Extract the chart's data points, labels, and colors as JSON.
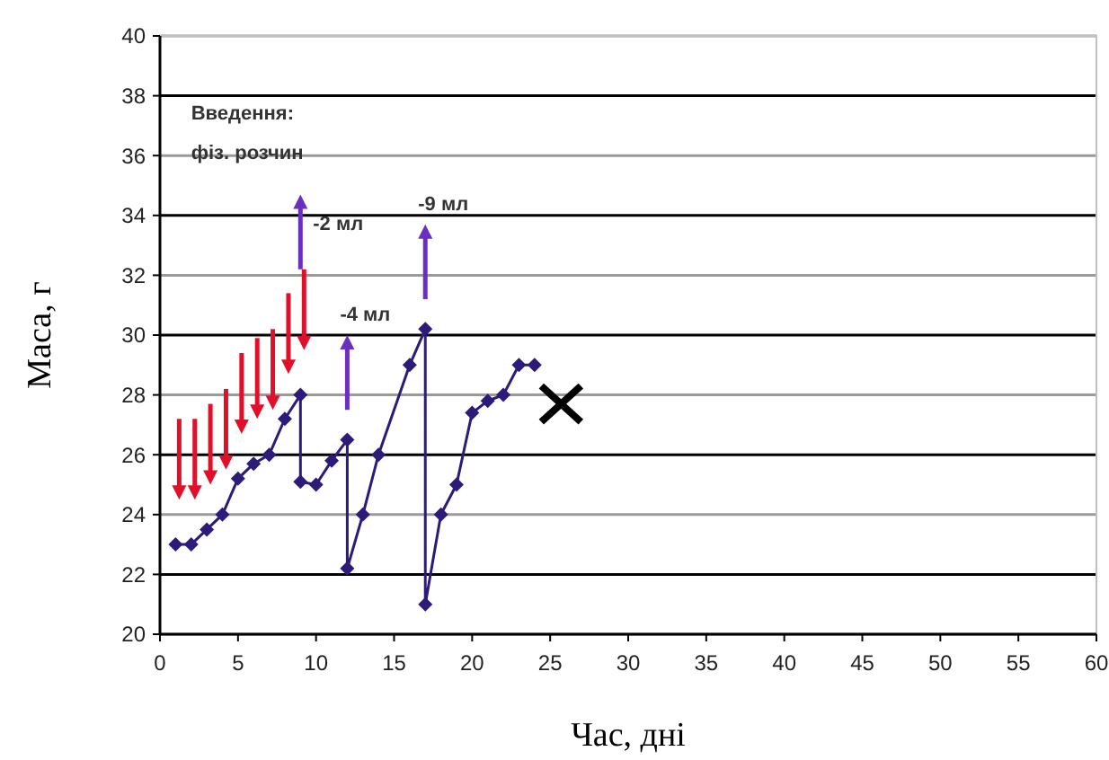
{
  "chart_data": {
    "type": "line",
    "xlabel": "Час, дні",
    "ylabel": "Маса, г",
    "xlim": [
      0,
      60
    ],
    "xticks": [
      0,
      5,
      10,
      15,
      20,
      25,
      30,
      35,
      40,
      45,
      50,
      55,
      60
    ],
    "ylim": [
      20,
      40
    ],
    "yticks": [
      20,
      22,
      24,
      26,
      28,
      30,
      32,
      34,
      36,
      38,
      40
    ],
    "grid": "y",
    "line_style": "solid",
    "series": [
      {
        "color": "#2e1a78",
        "marker": "diamond",
        "x": [
          1,
          2,
          3,
          4,
          5,
          6,
          7,
          8,
          9,
          9,
          10,
          11,
          12,
          12,
          13,
          14,
          16,
          17,
          17,
          18,
          19,
          20,
          21,
          22,
          23,
          24
        ],
        "values": [
          23,
          23,
          23.5,
          24,
          25.2,
          25.7,
          26,
          27.2,
          28,
          25.1,
          25,
          25.8,
          26.5,
          22.2,
          24,
          26,
          29,
          30.2,
          21,
          24,
          25,
          27.4,
          27.8,
          28,
          29,
          29
        ]
      },
      {
        "type": "scatter",
        "color": "#000000",
        "marker": "cross",
        "x": [
          25.7
        ],
        "values": [
          27.7
        ]
      }
    ],
    "annotations": [
      "Введення:\nфіз. розчин",
      "-2 мл",
      "-4 мл",
      "-9 мл"
    ]
  }
}
